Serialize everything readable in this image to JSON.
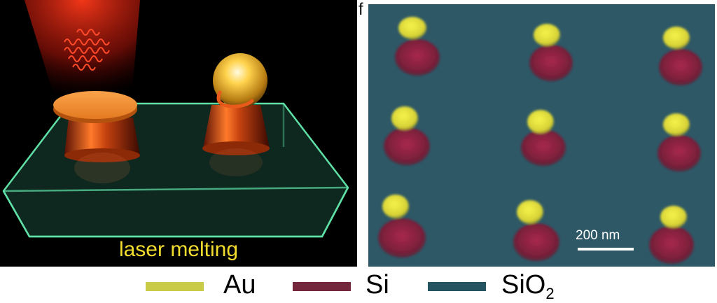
{
  "schematic": {
    "caption": "laser melting"
  },
  "sem_panel": {
    "panel_label": "f",
    "scale_bar_text": "200 nm"
  },
  "legend": {
    "items": [
      {
        "label": "Au",
        "subscript": "",
        "color": "#c9cb46"
      },
      {
        "label": "Si",
        "subscript": "",
        "color": "#74263c"
      },
      {
        "label": "SiO",
        "subscript": "2",
        "color": "#23535e"
      }
    ]
  },
  "colors": {
    "substrate_edge": "#5fe0a6",
    "laser": "#e0361c",
    "pillar": "#d2541d",
    "gold": "#ffd34d",
    "caption": "#f2dc2e",
    "sem_background": "#2e5866"
  }
}
